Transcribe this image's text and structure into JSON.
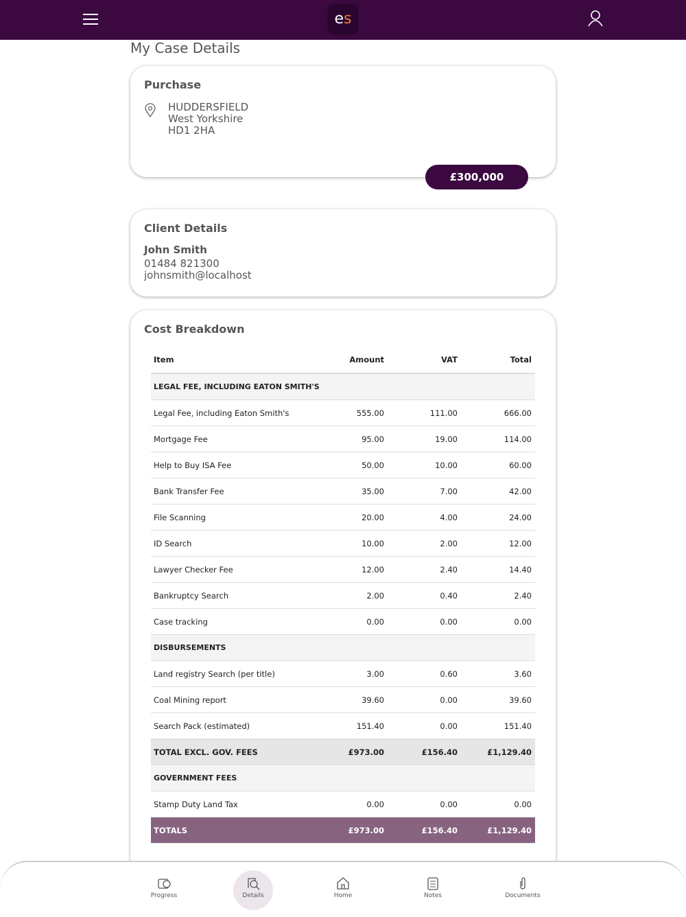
{
  "header": {
    "logo": [
      "e",
      "s"
    ]
  },
  "page_title": "My Case Details",
  "purchase": {
    "title": "Purchase",
    "address": [
      "HUDDERSFIELD",
      "West Yorkshire",
      "HD1 2HA"
    ],
    "price": "£300,000"
  },
  "client": {
    "title": "Client Details",
    "name": "John Smith",
    "phone": "01484 821300",
    "email": "johnsmith@localhost"
  },
  "costs": {
    "title": "Cost Breakdown",
    "columns": [
      "Item",
      "Amount",
      "VAT",
      "Total"
    ],
    "sections": [
      {
        "heading": "LEGAL FEE, INCLUDING EATON SMITH'S",
        "rows": [
          [
            "Legal Fee, including Eaton Smith's",
            "555.00",
            "111.00",
            "666.00"
          ],
          [
            "Mortgage Fee",
            "95.00",
            "19.00",
            "114.00"
          ],
          [
            "Help to Buy ISA Fee",
            "50.00",
            "10.00",
            "60.00"
          ],
          [
            "Bank Transfer Fee",
            "35.00",
            "7.00",
            "42.00"
          ],
          [
            "File Scanning",
            "20.00",
            "4.00",
            "24.00"
          ],
          [
            "ID Search",
            "10.00",
            "2.00",
            "12.00"
          ],
          [
            "Lawyer Checker Fee",
            "12.00",
            "2.40",
            "14.40"
          ],
          [
            "Bankruptcy Search",
            "2.00",
            "0.40",
            "2.40"
          ],
          [
            "Case tracking",
            "0.00",
            "0.00",
            "0.00"
          ]
        ]
      },
      {
        "heading": "DISBURSEMENTS",
        "rows": [
          [
            "Land registry Search (per title)",
            "3.00",
            "0.60",
            "3.60"
          ],
          [
            "Coal Mining report",
            "39.60",
            "0.00",
            "39.60"
          ],
          [
            "Search Pack (estimated)",
            "151.40",
            "0.00",
            "151.40"
          ]
        ],
        "subtotal": [
          "TOTAL EXCL. GOV. FEES",
          "£973.00",
          "£156.40",
          "£1,129.40"
        ]
      },
      {
        "heading": "GOVERNMENT FEES",
        "rows": [
          [
            "Stamp Duty Land Tax",
            "0.00",
            "0.00",
            "0.00"
          ]
        ]
      }
    ],
    "grand_total": [
      "TOTALS",
      "£973.00",
      "£156.40",
      "£1,129.40"
    ]
  },
  "nav": {
    "items": [
      "Progress",
      "Details",
      "Home",
      "Notes",
      "Documents"
    ],
    "active": 1
  }
}
